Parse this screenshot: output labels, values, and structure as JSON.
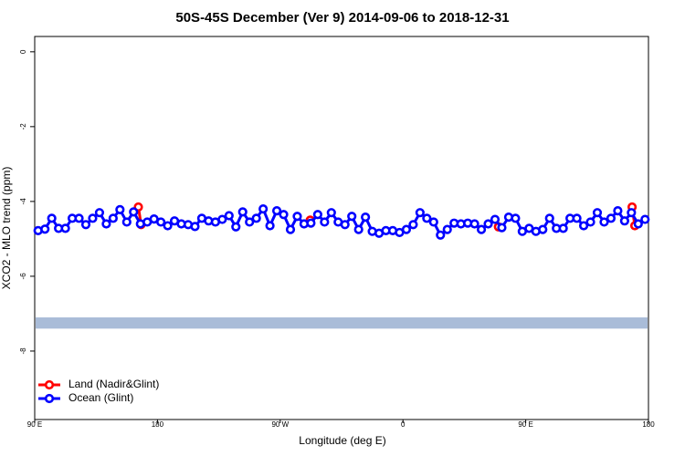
{
  "chart_data": {
    "type": "line",
    "title": "50S-45S December (Ver 9)   2014-09-06 to 2018-12-31",
    "x_label": "Longitude (deg E)",
    "y_label": "XCO2 - MLO trend (ppm)",
    "xlim": [
      90,
      540
    ],
    "xticks": [
      {
        "value": 90,
        "label": "90 E"
      },
      180,
      {
        "value": 270,
        "label": "90 W"
      },
      {
        "value": 360,
        "label": "0"
      },
      {
        "value": 450,
        "label": "90 E"
      },
      {
        "value": 540,
        "label": "180"
      }
    ],
    "ylim": [
      -9.83,
      0.41
    ],
    "yticks": [
      0,
      -2,
      -4,
      -6,
      -8
    ],
    "legend": "bottom-left",
    "coverage_band": {
      "ylim": [
        -7.4,
        -7.1
      ],
      "color": "#a9bcd8"
    },
    "series": [
      {
        "name": "Land (Nadir&Glint)",
        "color": "#ff0000",
        "x": [
          166,
          168,
          230,
          292,
          361,
          430,
          479,
          528,
          530
        ],
        "values": [
          -4.15,
          -4.62,
          null,
          -4.5,
          null,
          -4.68,
          null,
          -4.15,
          -4.65
        ]
      },
      {
        "name": "Ocean (Glint)",
        "color": "#0000ff",
        "x": [
          92.5,
          97.5,
          102.5,
          107.5,
          112.5,
          117.5,
          122.5,
          127.5,
          132.5,
          137.5,
          142.5,
          147.5,
          152.5,
          157.5,
          162.5,
          167.5,
          172.5,
          177.5,
          182.5,
          187.5,
          192.5,
          197.5,
          202.5,
          207.5,
          212.5,
          217.5,
          222.5,
          227.5,
          232.5,
          237.5,
          242.5,
          247.5,
          252.5,
          257.5,
          262.5,
          267.5,
          272.5,
          277.5,
          282.5,
          287.5,
          292.5,
          297.5,
          302.5,
          307.5,
          312.5,
          317.5,
          322.5,
          327.5,
          332.5,
          337.5,
          342.5,
          347.5,
          352.5,
          357.5,
          362.5,
          367.5,
          372.5,
          377.5,
          382.5,
          387.5,
          392.5,
          397.5,
          402.5,
          407.5,
          412.5,
          417.5,
          422.5,
          427.5,
          432.5,
          437.5,
          442.5,
          447.5,
          452.5,
          457.5,
          462.5,
          467.5,
          472.5,
          477.5,
          482.5,
          487.5,
          492.5,
          497.5,
          502.5,
          507.5,
          512.5,
          517.5,
          522.5,
          527.5,
          532.5,
          537.5
        ],
        "values": [
          -4.78,
          -4.74,
          -4.45,
          -4.72,
          -4.72,
          -4.45,
          -4.45,
          -4.62,
          -4.45,
          -4.3,
          -4.6,
          -4.45,
          -4.22,
          -4.55,
          -4.28,
          -4.6,
          -4.55,
          -4.47,
          -4.55,
          -4.65,
          -4.52,
          -4.6,
          -4.62,
          -4.67,
          -4.45,
          -4.52,
          -4.55,
          -4.48,
          -4.38,
          -4.68,
          -4.28,
          -4.55,
          -4.45,
          -4.2,
          -4.65,
          -4.25,
          -4.35,
          -4.75,
          -4.4,
          -4.6,
          -4.58,
          -4.35,
          -4.55,
          -4.3,
          -4.55,
          -4.62,
          -4.4,
          -4.75,
          -4.42,
          -4.8,
          -4.85,
          -4.78,
          -4.78,
          -4.83,
          -4.75,
          -4.62,
          -4.3,
          -4.45,
          -4.55,
          -4.9,
          -4.75,
          -4.58,
          -4.6,
          -4.58,
          -4.6,
          -4.75,
          -4.6,
          -4.48,
          -4.7,
          -4.42,
          -4.45,
          -4.8,
          -4.72,
          -4.8,
          -4.75,
          -4.45,
          -4.72,
          -4.72,
          -4.45,
          -4.45,
          -4.65,
          -4.55,
          -4.3,
          -4.55,
          -4.45,
          -4.25,
          -4.52,
          -4.3,
          -4.6,
          -4.48
        ]
      }
    ]
  }
}
